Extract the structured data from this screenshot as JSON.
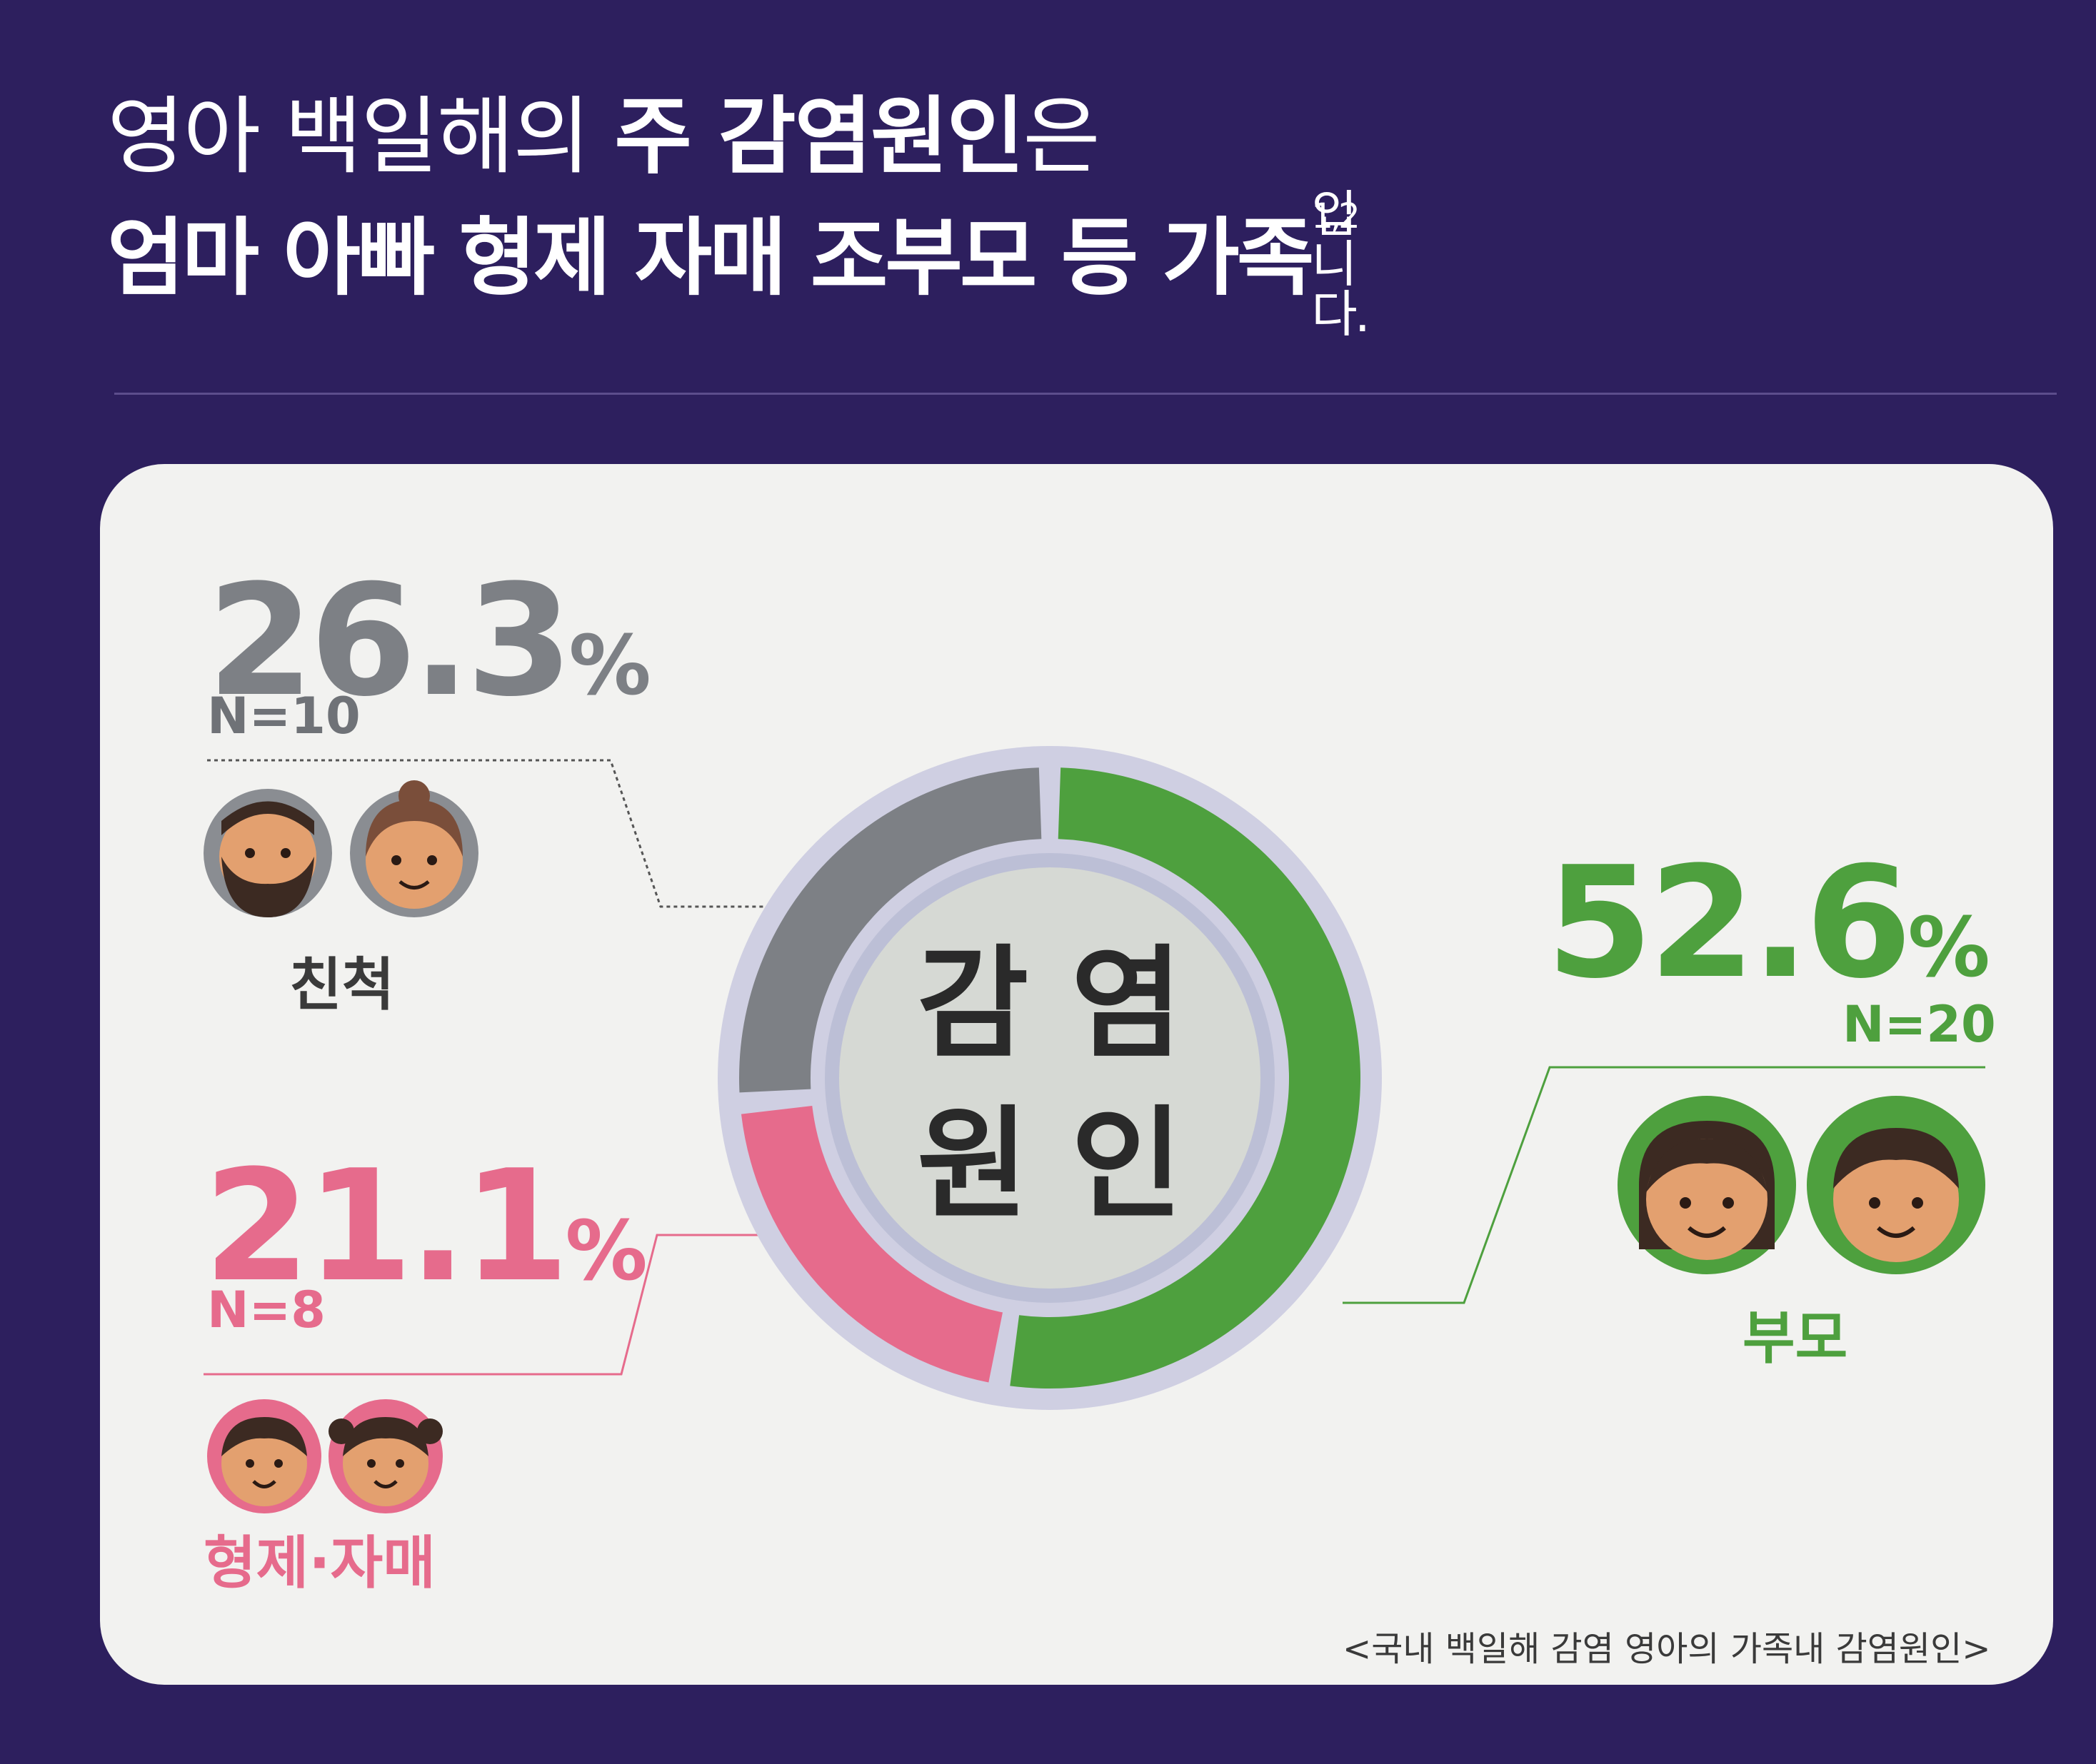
{
  "headline": {
    "line1": {
      "normal": "영아 백일해의 ",
      "bold": "주 감염원인",
      "normal_end": "은"
    },
    "line2": {
      "bold": "엄마 아빠 형제 자매 조부모 등 가족",
      "normal": "입니다.",
      "footnote": "1,2"
    }
  },
  "chart_data": {
    "type": "pie",
    "variant": "donut",
    "center_label": [
      "감 염",
      "원 인"
    ],
    "slices": [
      {
        "category": "부모",
        "value": 52.6,
        "label": "52.6%",
        "n_label": "N=20",
        "color": "#4ea03e"
      },
      {
        "category": "형제·자매",
        "value": 21.1,
        "label": "21.1%",
        "n_label": "N=8",
        "color": "#e66b8c"
      },
      {
        "category": "친척",
        "value": 26.3,
        "label": "26.3%",
        "n_label": "N=10",
        "color": "#7d8085"
      }
    ],
    "caption": "<국내 백일해 감염 영아의 가족내 감염원인>"
  },
  "colors": {
    "background": "#2d1f5e",
    "card": "#f2f2f0",
    "parents": "#4ea03e",
    "siblings": "#e66b8c",
    "relatives": "#7d8085"
  },
  "icons": [
    "male-elder-icon",
    "female-elder-icon",
    "mother-icon",
    "father-icon",
    "brother-icon",
    "sister-icon"
  ]
}
